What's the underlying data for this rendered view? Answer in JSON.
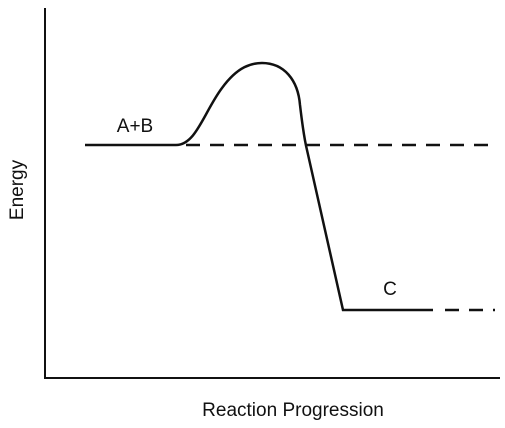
{
  "axes": {
    "y_label": "Energy",
    "x_label": "Reaction Progression"
  },
  "labels": {
    "reactants": "A+B",
    "product": "C"
  }
}
